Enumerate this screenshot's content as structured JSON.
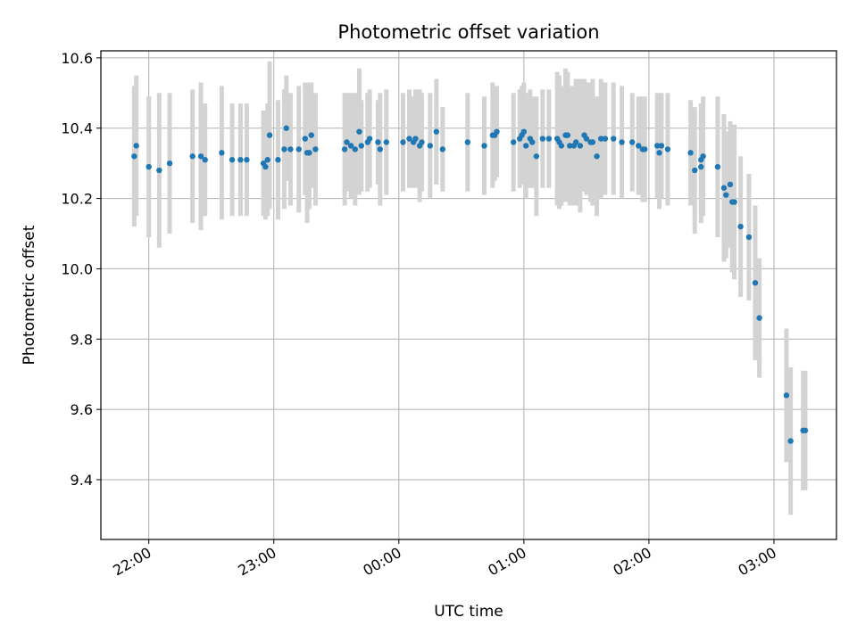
{
  "chart_data": {
    "type": "scatter",
    "title": "Photometric offset variation",
    "xlabel": "UTC time",
    "ylabel": "Photometric offset",
    "xlim": [
      "21:37",
      "03:30"
    ],
    "ylim": [
      9.23,
      10.62
    ],
    "x_ticks": [
      "22:00",
      "23:00",
      "00:00",
      "01:00",
      "02:00",
      "03:00"
    ],
    "y_ticks": [
      9.4,
      9.6,
      9.8,
      10.0,
      10.2,
      10.4,
      10.6
    ],
    "grid": true,
    "colors": {
      "points": "#1f77b4",
      "error_bars": "#d3d3d3",
      "grid": "#b0b0b0",
      "axes": "#000000"
    },
    "series": [
      {
        "points": [
          {
            "x": "21:53",
            "y": 10.32,
            "err": 0.2
          },
          {
            "x": "21:54",
            "y": 10.35,
            "err": 0.2
          },
          {
            "x": "22:00",
            "y": 10.29,
            "err": 0.2
          },
          {
            "x": "22:05",
            "y": 10.28,
            "err": 0.22
          },
          {
            "x": "22:10",
            "y": 10.3,
            "err": 0.2
          },
          {
            "x": "22:21",
            "y": 10.32,
            "err": 0.19
          },
          {
            "x": "22:25",
            "y": 10.32,
            "err": 0.21
          },
          {
            "x": "22:27",
            "y": 10.31,
            "err": 0.16
          },
          {
            "x": "22:35",
            "y": 10.33,
            "err": 0.19
          },
          {
            "x": "22:40",
            "y": 10.31,
            "err": 0.16
          },
          {
            "x": "22:44",
            "y": 10.31,
            "err": 0.16
          },
          {
            "x": "22:47",
            "y": 10.31,
            "err": 0.16
          },
          {
            "x": "22:55",
            "y": 10.3,
            "err": 0.15
          },
          {
            "x": "22:56",
            "y": 10.29,
            "err": 0.15
          },
          {
            "x": "22:57",
            "y": 10.31,
            "err": 0.16
          },
          {
            "x": "22:58",
            "y": 10.38,
            "err": 0.21
          },
          {
            "x": "23:02",
            "y": 10.31,
            "err": 0.17
          },
          {
            "x": "23:05",
            "y": 10.34,
            "err": 0.17
          },
          {
            "x": "23:06",
            "y": 10.4,
            "err": 0.15
          },
          {
            "x": "23:08",
            "y": 10.34,
            "err": 0.16
          },
          {
            "x": "23:12",
            "y": 10.34,
            "err": 0.18
          },
          {
            "x": "23:15",
            "y": 10.37,
            "err": 0.16
          },
          {
            "x": "23:16",
            "y": 10.33,
            "err": 0.2
          },
          {
            "x": "23:17",
            "y": 10.33,
            "err": 0.16
          },
          {
            "x": "23:18",
            "y": 10.38,
            "err": 0.15
          },
          {
            "x": "23:20",
            "y": 10.34,
            "err": 0.16
          },
          {
            "x": "23:34",
            "y": 10.34,
            "err": 0.16
          },
          {
            "x": "23:35",
            "y": 10.36,
            "err": 0.14
          },
          {
            "x": "23:37",
            "y": 10.35,
            "err": 0.15
          },
          {
            "x": "23:39",
            "y": 10.34,
            "err": 0.16
          },
          {
            "x": "23:41",
            "y": 10.39,
            "err": 0.18
          },
          {
            "x": "23:42",
            "y": 10.35,
            "err": 0.13
          },
          {
            "x": "23:45",
            "y": 10.36,
            "err": 0.14
          },
          {
            "x": "23:46",
            "y": 10.37,
            "err": 0.14
          },
          {
            "x": "23:50",
            "y": 10.36,
            "err": 0.12
          },
          {
            "x": "23:51",
            "y": 10.34,
            "err": 0.16
          },
          {
            "x": "23:54",
            "y": 10.36,
            "err": 0.15
          },
          {
            "x": "00:02",
            "y": 10.36,
            "err": 0.14
          },
          {
            "x": "00:05",
            "y": 10.37,
            "err": 0.14
          },
          {
            "x": "00:07",
            "y": 10.36,
            "err": 0.13
          },
          {
            "x": "00:08",
            "y": 10.37,
            "err": 0.14
          },
          {
            "x": "00:10",
            "y": 10.35,
            "err": 0.16
          },
          {
            "x": "00:11",
            "y": 10.36,
            "err": 0.14
          },
          {
            "x": "00:15",
            "y": 10.35,
            "err": 0.15
          },
          {
            "x": "00:18",
            "y": 10.39,
            "err": 0.15
          },
          {
            "x": "00:21",
            "y": 10.34,
            "err": 0.12
          },
          {
            "x": "00:33",
            "y": 10.36,
            "err": 0.14
          },
          {
            "x": "00:41",
            "y": 10.35,
            "err": 0.14
          },
          {
            "x": "00:45",
            "y": 10.38,
            "err": 0.15
          },
          {
            "x": "00:46",
            "y": 10.38,
            "err": 0.13
          },
          {
            "x": "00:47",
            "y": 10.39,
            "err": 0.13
          },
          {
            "x": "00:55",
            "y": 10.36,
            "err": 0.14
          },
          {
            "x": "00:58",
            "y": 10.37,
            "err": 0.14
          },
          {
            "x": "00:59",
            "y": 10.38,
            "err": 0.14
          },
          {
            "x": "01:00",
            "y": 10.39,
            "err": 0.14
          },
          {
            "x": "01:01",
            "y": 10.35,
            "err": 0.15
          },
          {
            "x": "01:03",
            "y": 10.37,
            "err": 0.14
          },
          {
            "x": "01:04",
            "y": 10.36,
            "err": 0.13
          },
          {
            "x": "01:06",
            "y": 10.32,
            "err": 0.17
          },
          {
            "x": "01:09",
            "y": 10.37,
            "err": 0.14
          },
          {
            "x": "01:12",
            "y": 10.37,
            "err": 0.14
          },
          {
            "x": "01:16",
            "y": 10.37,
            "err": 0.19
          },
          {
            "x": "01:17",
            "y": 10.36,
            "err": 0.19
          },
          {
            "x": "01:18",
            "y": 10.35,
            "err": 0.17
          },
          {
            "x": "01:20",
            "y": 10.38,
            "err": 0.19
          },
          {
            "x": "01:21",
            "y": 10.38,
            "err": 0.18
          },
          {
            "x": "01:22",
            "y": 10.35,
            "err": 0.17
          },
          {
            "x": "01:24",
            "y": 10.35,
            "err": 0.17
          },
          {
            "x": "01:25",
            "y": 10.36,
            "err": 0.18
          },
          {
            "x": "01:27",
            "y": 10.35,
            "err": 0.19
          },
          {
            "x": "01:29",
            "y": 10.38,
            "err": 0.16
          },
          {
            "x": "01:30",
            "y": 10.37,
            "err": 0.16
          },
          {
            "x": "01:32",
            "y": 10.36,
            "err": 0.17
          },
          {
            "x": "01:33",
            "y": 10.36,
            "err": 0.18
          },
          {
            "x": "01:35",
            "y": 10.32,
            "err": 0.17
          },
          {
            "x": "01:37",
            "y": 10.37,
            "err": 0.17
          },
          {
            "x": "01:39",
            "y": 10.37,
            "err": 0.16
          },
          {
            "x": "01:43",
            "y": 10.37,
            "err": 0.16
          },
          {
            "x": "01:47",
            "y": 10.36,
            "err": 0.16
          },
          {
            "x": "01:52",
            "y": 10.36,
            "err": 0.14
          },
          {
            "x": "01:55",
            "y": 10.35,
            "err": 0.14
          },
          {
            "x": "01:57",
            "y": 10.34,
            "err": 0.15
          },
          {
            "x": "01:58",
            "y": 10.34,
            "err": 0.15
          },
          {
            "x": "02:04",
            "y": 10.35,
            "err": 0.15
          },
          {
            "x": "02:05",
            "y": 10.33,
            "err": 0.16
          },
          {
            "x": "02:06",
            "y": 10.35,
            "err": 0.15
          },
          {
            "x": "02:09",
            "y": 10.34,
            "err": 0.16
          },
          {
            "x": "02:20",
            "y": 10.33,
            "err": 0.15
          },
          {
            "x": "02:22",
            "y": 10.28,
            "err": 0.18
          },
          {
            "x": "02:25",
            "y": 10.31,
            "err": 0.16
          },
          {
            "x": "02:25",
            "y": 10.29,
            "err": 0.16
          },
          {
            "x": "02:26",
            "y": 10.32,
            "err": 0.17
          },
          {
            "x": "02:33",
            "y": 10.29,
            "err": 0.2
          },
          {
            "x": "02:36",
            "y": 10.23,
            "err": 0.21
          },
          {
            "x": "02:37",
            "y": 10.21,
            "err": 0.18
          },
          {
            "x": "02:39",
            "y": 10.24,
            "err": 0.18
          },
          {
            "x": "02:40",
            "y": 10.19,
            "err": 0.2
          },
          {
            "x": "02:41",
            "y": 10.19,
            "err": 0.22
          },
          {
            "x": "02:44",
            "y": 10.12,
            "err": 0.2
          },
          {
            "x": "02:48",
            "y": 10.09,
            "err": 0.18
          },
          {
            "x": "02:51",
            "y": 9.96,
            "err": 0.22
          },
          {
            "x": "02:53",
            "y": 9.86,
            "err": 0.17
          },
          {
            "x": "03:06",
            "y": 9.64,
            "err": 0.19
          },
          {
            "x": "03:08",
            "y": 9.51,
            "err": 0.21
          },
          {
            "x": "03:14",
            "y": 9.54,
            "err": 0.17
          },
          {
            "x": "03:15",
            "y": 9.54,
            "err": 0.17
          }
        ]
      }
    ]
  }
}
